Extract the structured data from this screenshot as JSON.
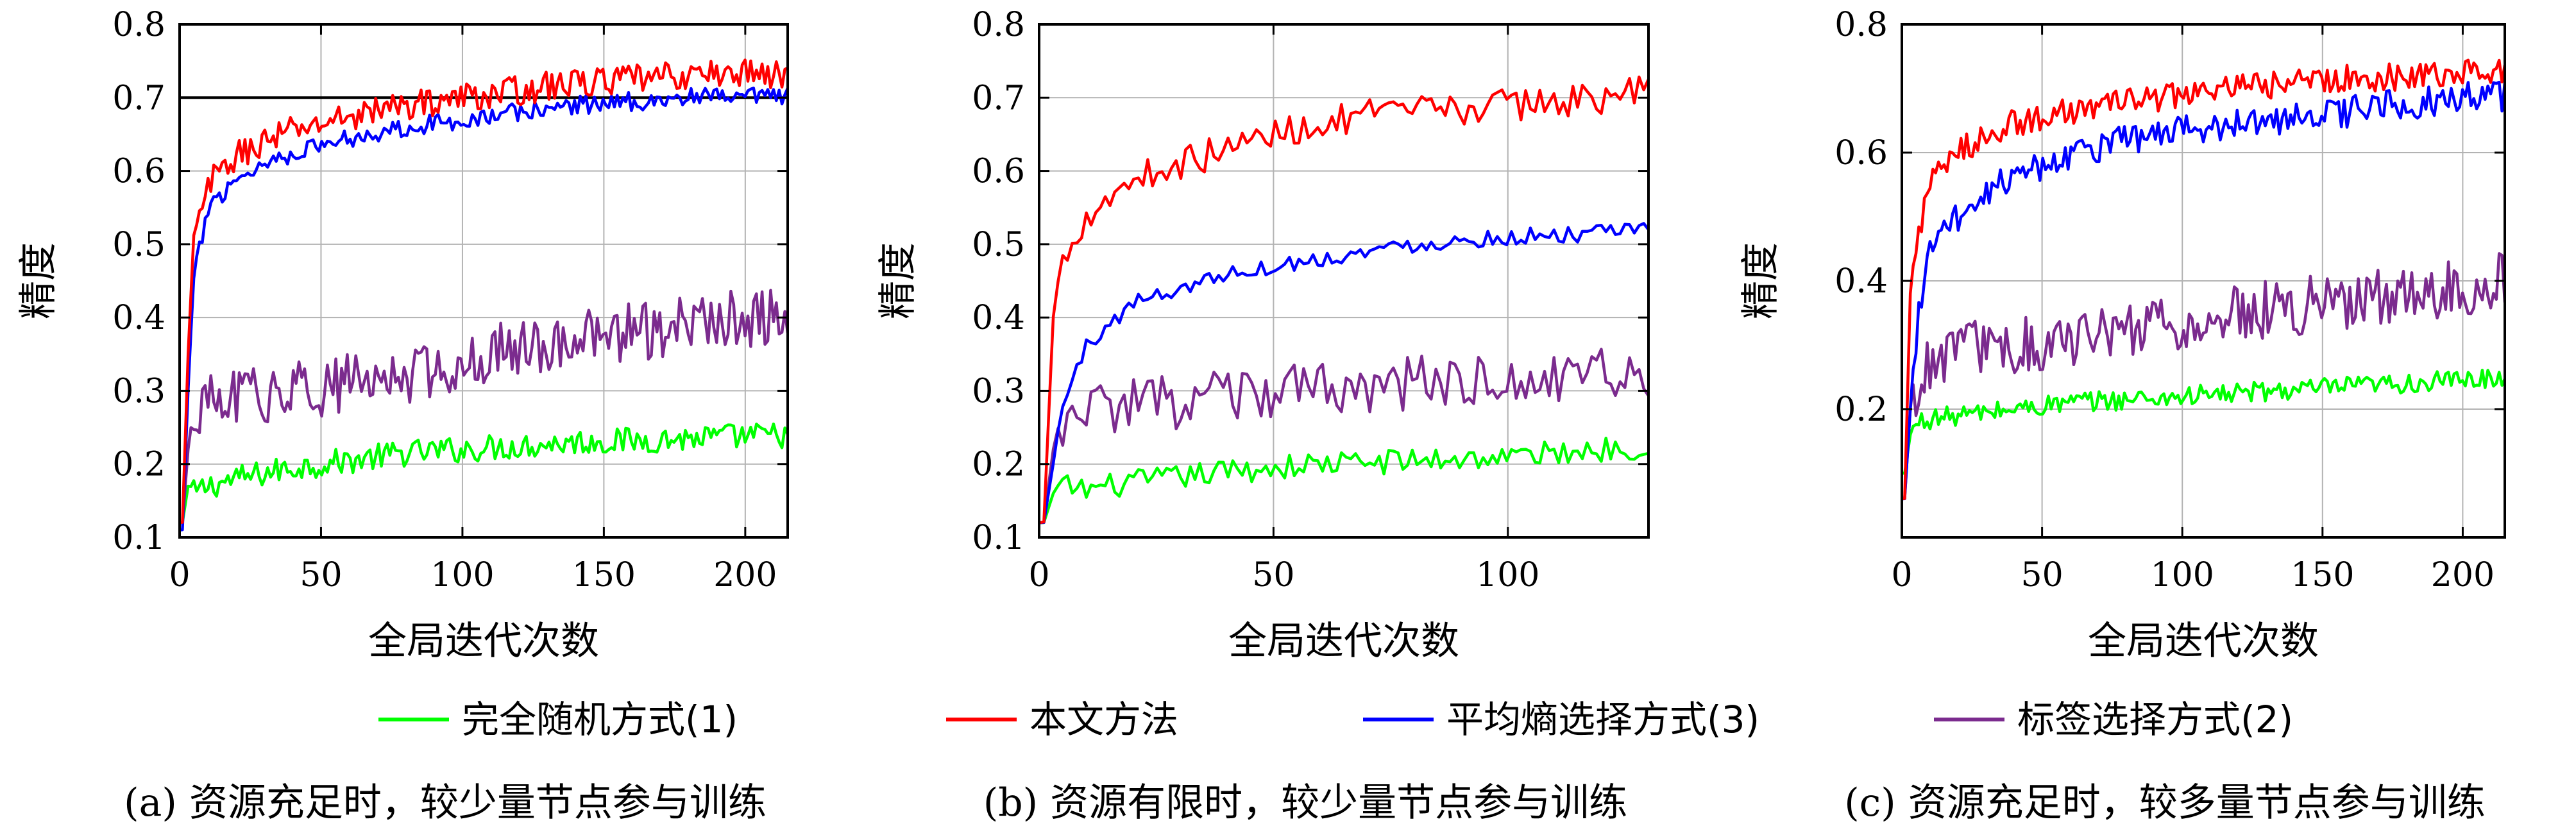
{
  "xlabel": "全局迭代次数",
  "ylabel": "精度",
  "legend": [
    {
      "name": "完全随机方式(1)",
      "color": "#00ff00"
    },
    {
      "name": "本文方法",
      "color": "#ff0000"
    },
    {
      "name": "平均熵选择方式(3)",
      "color": "#0000ff"
    },
    {
      "name": "标签选择方式(2)",
      "color": "#7b2b8e"
    }
  ],
  "chart_data": [
    {
      "type": "line",
      "caption": "(a) 资源充足时，较少量节点参与训练",
      "xlabel": "全局迭代次数",
      "ylabel": "精度",
      "xlim": [
        0,
        215
      ],
      "ylim": [
        0.1,
        0.8
      ],
      "xticks": [
        0,
        50,
        100,
        150,
        200
      ],
      "yticks": [
        0.1,
        0.2,
        0.3,
        0.4,
        0.5,
        0.6,
        0.7,
        0.8
      ],
      "reference_line": 0.7,
      "grid": true,
      "points": 215,
      "series": [
        {
          "name": "完全随机方式(1)",
          "color": "#00ff00",
          "x": [
            1,
            3,
            5,
            10,
            20,
            40,
            60,
            80,
            100,
            120,
            140,
            160,
            180,
            200,
            215
          ],
          "values": [
            0.12,
            0.17,
            0.16,
            0.17,
            0.18,
            0.195,
            0.205,
            0.215,
            0.22,
            0.225,
            0.23,
            0.232,
            0.235,
            0.238,
            0.24
          ],
          "noise": 0.018
        },
        {
          "name": "本文方法",
          "color": "#ff0000",
          "x": [
            1,
            3,
            5,
            10,
            20,
            30,
            40,
            60,
            80,
            100,
            120,
            140,
            160,
            180,
            200,
            215
          ],
          "values": [
            0.12,
            0.35,
            0.5,
            0.58,
            0.62,
            0.64,
            0.655,
            0.675,
            0.69,
            0.7,
            0.71,
            0.72,
            0.725,
            0.73,
            0.735,
            0.73
          ],
          "noise": 0.02
        },
        {
          "name": "平均熵选择方式(3)",
          "color": "#0000ff",
          "x": [
            1,
            3,
            5,
            10,
            20,
            30,
            40,
            60,
            80,
            100,
            120,
            140,
            160,
            180,
            200,
            215
          ],
          "values": [
            0.11,
            0.3,
            0.45,
            0.55,
            0.59,
            0.61,
            0.625,
            0.645,
            0.66,
            0.67,
            0.68,
            0.69,
            0.695,
            0.7,
            0.7,
            0.7
          ],
          "noise": 0.013
        },
        {
          "name": "标签选择方式(2)",
          "color": "#7b2b8e",
          "x": [
            1,
            3,
            6,
            10,
            20,
            40,
            60,
            80,
            100,
            120,
            140,
            160,
            180,
            200,
            215
          ],
          "values": [
            0.12,
            0.22,
            0.27,
            0.28,
            0.29,
            0.3,
            0.31,
            0.32,
            0.34,
            0.36,
            0.37,
            0.38,
            0.39,
            0.4,
            0.4
          ],
          "noise": 0.04
        }
      ]
    },
    {
      "type": "line",
      "caption": "(b) 资源有限时，较少量节点参与训练",
      "xlabel": "全局迭代次数",
      "ylabel": "精度",
      "xlim": [
        0,
        130
      ],
      "ylim": [
        0.1,
        0.8
      ],
      "xticks": [
        0,
        50,
        100
      ],
      "yticks": [
        0.1,
        0.2,
        0.3,
        0.4,
        0.5,
        0.6,
        0.7,
        0.8
      ],
      "grid": true,
      "points": 130,
      "series": [
        {
          "name": "完全随机方式(1)",
          "color": "#00ff00",
          "x": [
            1,
            3,
            5,
            10,
            20,
            40,
            60,
            80,
            100,
            120,
            130
          ],
          "values": [
            0.12,
            0.16,
            0.17,
            0.165,
            0.175,
            0.19,
            0.2,
            0.205,
            0.21,
            0.22,
            0.225
          ],
          "noise": 0.017
        },
        {
          "name": "本文方法",
          "color": "#ff0000",
          "x": [
            1,
            3,
            5,
            10,
            20,
            30,
            40,
            50,
            60,
            70,
            80,
            100,
            120,
            130
          ],
          "values": [
            0.12,
            0.4,
            0.48,
            0.54,
            0.59,
            0.61,
            0.63,
            0.65,
            0.665,
            0.675,
            0.68,
            0.69,
            0.7,
            0.71
          ],
          "noise": 0.022
        },
        {
          "name": "平均熵选择方式(3)",
          "color": "#0000ff",
          "x": [
            1,
            3,
            5,
            10,
            20,
            30,
            40,
            50,
            60,
            70,
            80,
            100,
            120,
            130
          ],
          "values": [
            0.12,
            0.2,
            0.28,
            0.36,
            0.42,
            0.44,
            0.46,
            0.47,
            0.48,
            0.49,
            0.5,
            0.51,
            0.515,
            0.52
          ],
          "noise": 0.011
        },
        {
          "name": "标签选择方式(2)",
          "color": "#7b2b8e",
          "x": [
            1,
            3,
            6,
            10,
            20,
            40,
            60,
            80,
            100,
            120,
            130
          ],
          "values": [
            0.12,
            0.22,
            0.26,
            0.27,
            0.28,
            0.29,
            0.3,
            0.31,
            0.31,
            0.32,
            0.32
          ],
          "noise": 0.038
        }
      ]
    },
    {
      "type": "line",
      "caption": "(c) 资源充足时，较多量节点参与训练",
      "xlabel": "全局迭代次数",
      "ylabel": "精度",
      "xlim": [
        0,
        215
      ],
      "ylim": [
        0,
        0.8
      ],
      "xticks": [
        0,
        50,
        100,
        150,
        200
      ],
      "yticks": [
        0.2,
        0.4,
        0.6,
        0.8
      ],
      "grid": true,
      "points": 215,
      "series": [
        {
          "name": "完全随机方式(1)",
          "color": "#00ff00",
          "x": [
            1,
            3,
            6,
            10,
            20,
            40,
            60,
            80,
            100,
            120,
            140,
            160,
            180,
            200,
            215
          ],
          "values": [
            0.1,
            0.16,
            0.18,
            0.185,
            0.19,
            0.2,
            0.21,
            0.215,
            0.22,
            0.225,
            0.23,
            0.235,
            0.24,
            0.245,
            0.25
          ],
          "noise": 0.016
        },
        {
          "name": "本文方法",
          "color": "#ff0000",
          "x": [
            1,
            3,
            6,
            10,
            20,
            30,
            40,
            60,
            80,
            100,
            120,
            140,
            160,
            180,
            200,
            215
          ],
          "values": [
            0.06,
            0.38,
            0.48,
            0.55,
            0.6,
            0.63,
            0.645,
            0.665,
            0.68,
            0.69,
            0.7,
            0.71,
            0.715,
            0.72,
            0.725,
            0.73
          ],
          "noise": 0.022
        },
        {
          "name": "平均熵选择方式(3)",
          "color": "#0000ff",
          "x": [
            1,
            3,
            6,
            10,
            20,
            30,
            40,
            50,
            60,
            80,
            100,
            120,
            140,
            160,
            180,
            200,
            215
          ],
          "values": [
            0.06,
            0.2,
            0.35,
            0.45,
            0.5,
            0.54,
            0.57,
            0.58,
            0.6,
            0.62,
            0.635,
            0.645,
            0.655,
            0.665,
            0.675,
            0.685,
            0.69
          ],
          "noise": 0.025
        },
        {
          "name": "标签选择方式(2)",
          "color": "#7b2b8e",
          "x": [
            1,
            3,
            6,
            10,
            20,
            40,
            60,
            80,
            100,
            120,
            140,
            160,
            180,
            200,
            215
          ],
          "values": [
            0.06,
            0.2,
            0.25,
            0.27,
            0.29,
            0.3,
            0.31,
            0.32,
            0.33,
            0.35,
            0.36,
            0.37,
            0.38,
            0.39,
            0.4
          ],
          "noise": 0.045
        }
      ]
    }
  ]
}
